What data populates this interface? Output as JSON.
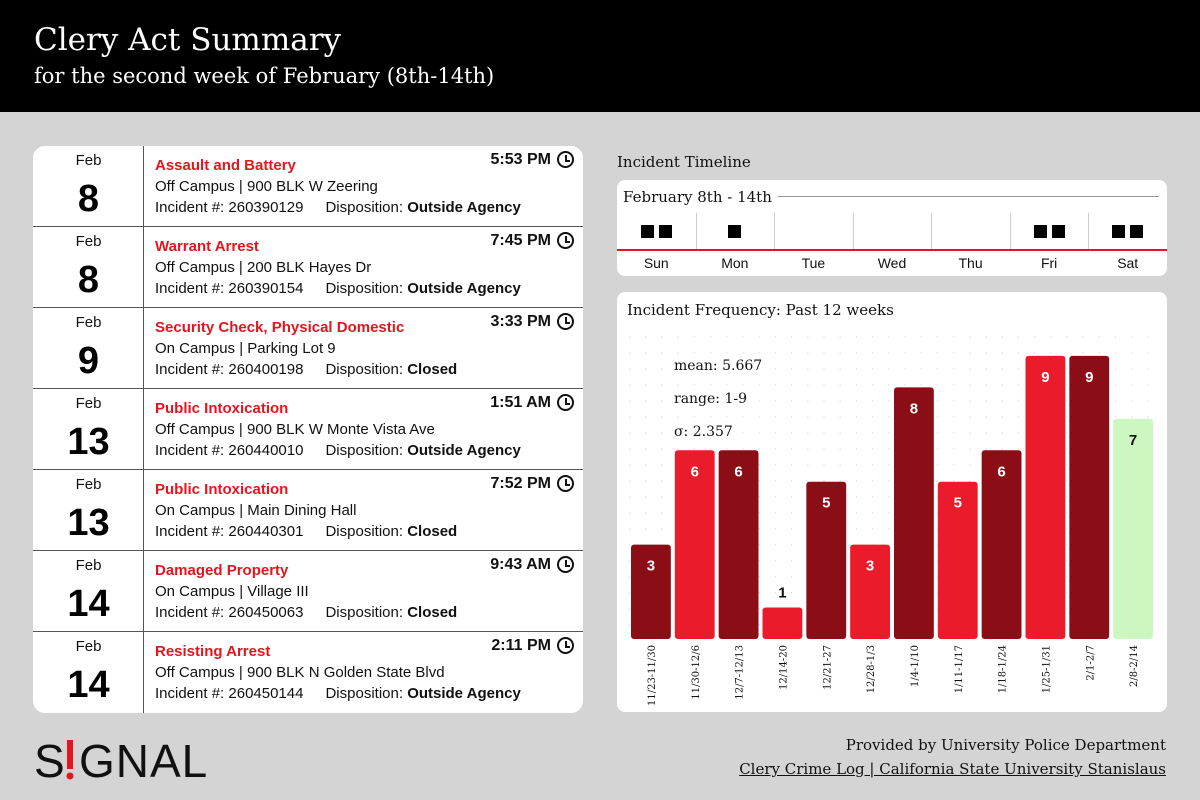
{
  "header": {
    "title": "Clery Act Summary",
    "subtitle": "for the second week of February (8th-14th)"
  },
  "incidents": [
    {
      "month": "Feb",
      "day": "8",
      "type": "Assault and Battery",
      "location": "Off Campus | 900 BLK W Zeering",
      "number_label": "Incident #: 260390129",
      "disposition_label": "Disposition:",
      "disposition": "Outside Agency",
      "time": "5:53 PM"
    },
    {
      "month": "Feb",
      "day": "8",
      "type": "Warrant Arrest",
      "location": "Off Campus | 200 BLK Hayes Dr",
      "number_label": "Incident #: 260390154",
      "disposition_label": "Disposition:",
      "disposition": "Outside Agency",
      "time": "7:45 PM"
    },
    {
      "month": "Feb",
      "day": "9",
      "type": "Security Check, Physical Domestic",
      "location": "On Campus | Parking Lot 9",
      "number_label": "Incident #: 260400198",
      "disposition_label": "Disposition:",
      "disposition": "Closed",
      "time": "3:33 PM"
    },
    {
      "month": "Feb",
      "day": "13",
      "type": "Public Intoxication",
      "location": "Off Campus | 900 BLK W Monte Vista Ave",
      "number_label": "Incident #: 260440010",
      "disposition_label": "Disposition:",
      "disposition": "Outside Agency",
      "time": "1:51 AM"
    },
    {
      "month": "Feb",
      "day": "13",
      "type": "Public Intoxication",
      "location": "On Campus | Main Dining Hall",
      "number_label": "Incident #: 260440301",
      "disposition_label": "Disposition:",
      "disposition": "Closed",
      "time": "7:52 PM"
    },
    {
      "month": "Feb",
      "day": "14",
      "type": "Damaged Property",
      "location": "On Campus | Village III",
      "number_label": "Incident #: 260450063",
      "disposition_label": "Disposition:",
      "disposition": "Closed",
      "time": "9:43 AM"
    },
    {
      "month": "Feb",
      "day": "14",
      "type": "Resisting Arrest",
      "location": "Off Campus | 900 BLK N Golden State Blvd",
      "number_label": "Incident #: 260450144",
      "disposition_label": "Disposition:",
      "disposition": "Outside Agency",
      "time": "2:11 PM"
    }
  ],
  "timeline": {
    "heading": "Incident Timeline",
    "title": "February 8th - 14th",
    "days": [
      "Sun",
      "Mon",
      "Tue",
      "Wed",
      "Thu",
      "Fri",
      "Sat"
    ],
    "counts": [
      2,
      1,
      0,
      0,
      0,
      2,
      2
    ],
    "marker_color": "#000000",
    "axis_color": "#e3161f"
  },
  "chart_data": {
    "type": "bar",
    "title": "Incident Frequency: Past 12 weeks",
    "categories": [
      "11/23-11/30",
      "11/30-12/6",
      "12/7-12/13",
      "12/14-20",
      "12/21-27",
      "12/28-1/3",
      "1/4-1/10",
      "1/11-1/17",
      "1/18-1/24",
      "1/25-1/31",
      "2/1-2/7",
      "2/8-2/14"
    ],
    "values": [
      3,
      6,
      6,
      1,
      5,
      3,
      8,
      5,
      6,
      9,
      9,
      7
    ],
    "bar_colors": [
      "#8b0d15",
      "#ea1c2b",
      "#8b0d15",
      "#ea1c2b",
      "#8b0d15",
      "#ea1c2b",
      "#8b0d15",
      "#ea1c2b",
      "#8b0d15",
      "#ea1c2b",
      "#8b0d15",
      "#ccf7c1"
    ],
    "ylim": [
      0,
      9.6
    ],
    "grid": "dotted",
    "stats": {
      "mean": "mean: 5.667",
      "range": "range: 1-9",
      "sigma": "σ: 2.357"
    }
  },
  "footer": {
    "logo_text": "SIGNAL",
    "credit_line1": "Provided by University Police Department",
    "credit_line2": "Clery Crime Log | California State University Stanislaus"
  }
}
